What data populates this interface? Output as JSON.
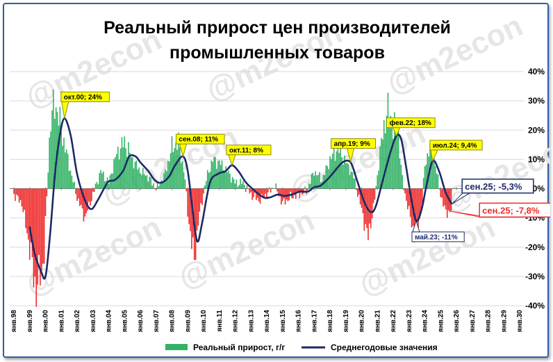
{
  "chart_data": {
    "type": "bar",
    "title_lines": [
      "Реальный прирост цен производителей",
      "промышленных товаров"
    ],
    "watermark": "@m2econ",
    "ylim": [
      -40,
      40
    ],
    "yticks": [
      40,
      30,
      20,
      10,
      0,
      -10,
      -20,
      -30,
      -40
    ],
    "ytick_labels": [
      "40%",
      "30%",
      "20%",
      "10%",
      "0%",
      "-10%",
      "-20%",
      "-30%",
      "-40%"
    ],
    "x_labels": [
      "янв.98",
      "янв.99",
      "янв.00",
      "янв.01",
      "янв.02",
      "янв.03",
      "янв.04",
      "янв.05",
      "янв.06",
      "янв.07",
      "янв.08",
      "янв.09",
      "янв.10",
      "янв.11",
      "янв.12",
      "янв.13",
      "янв.14",
      "янв.15",
      "янв.16",
      "янв.17",
      "янв.18",
      "янв.19",
      "янв.20",
      "янв.21",
      "янв.22",
      "янв.23",
      "янв.24",
      "янв.25",
      "янв.26",
      "янв.27",
      "янв.28",
      "янв.29",
      "янв.30"
    ],
    "x_start_year": 1998,
    "colors": {
      "positive": "#33b266",
      "negative": "#ee2b2b",
      "line": "#1b2a66",
      "callout_fill": "#ffff00"
    },
    "series": [
      {
        "name": "Реальный прирост, г/г",
        "kind": "bar",
        "points": [
          [
            1998.0,
            -2
          ],
          [
            1998.5,
            -5
          ],
          [
            1999.0,
            -20
          ],
          [
            1999.4,
            -35
          ],
          [
            1999.9,
            -24
          ],
          [
            2000.3,
            22
          ],
          [
            2000.6,
            30
          ],
          [
            2001.0,
            20
          ],
          [
            2001.5,
            8
          ],
          [
            2002.0,
            -3
          ],
          [
            2002.5,
            -10
          ],
          [
            2003.0,
            -2
          ],
          [
            2003.5,
            6
          ],
          [
            2004.0,
            2
          ],
          [
            2004.5,
            12
          ],
          [
            2005.0,
            16
          ],
          [
            2005.5,
            10
          ],
          [
            2006.0,
            6
          ],
          [
            2006.5,
            4
          ],
          [
            2007.0,
            0
          ],
          [
            2007.5,
            4
          ],
          [
            2008.0,
            14
          ],
          [
            2008.4,
            16
          ],
          [
            2008.8,
            5
          ],
          [
            2009.0,
            -8
          ],
          [
            2009.4,
            -25
          ],
          [
            2009.7,
            -10
          ],
          [
            2010.2,
            4
          ],
          [
            2010.6,
            10
          ],
          [
            2011.0,
            9
          ],
          [
            2011.5,
            6
          ],
          [
            2012.0,
            2
          ],
          [
            2012.5,
            2
          ],
          [
            2013.0,
            -2
          ],
          [
            2013.5,
            -4
          ],
          [
            2014.0,
            -2
          ],
          [
            2014.5,
            1
          ],
          [
            2015.0,
            -5
          ],
          [
            2015.5,
            -3
          ],
          [
            2016.0,
            -2
          ],
          [
            2016.5,
            -1
          ],
          [
            2017.0,
            6
          ],
          [
            2017.5,
            3
          ],
          [
            2018.0,
            10
          ],
          [
            2018.5,
            14
          ],
          [
            2019.0,
            9
          ],
          [
            2019.5,
            4
          ],
          [
            2020.0,
            -7
          ],
          [
            2020.4,
            -17
          ],
          [
            2020.8,
            -5
          ],
          [
            2021.2,
            14
          ],
          [
            2021.6,
            27
          ],
          [
            2022.0,
            22
          ],
          [
            2022.3,
            20
          ],
          [
            2022.6,
            2
          ],
          [
            2023.0,
            -8
          ],
          [
            2023.4,
            -17
          ],
          [
            2023.8,
            -7
          ],
          [
            2024.0,
            8
          ],
          [
            2024.3,
            14
          ],
          [
            2024.6,
            10
          ],
          [
            2025.0,
            -2
          ],
          [
            2025.3,
            -8
          ],
          [
            2025.7,
            -7.8
          ]
        ]
      },
      {
        "name": "Среднегодовые значения",
        "kind": "line",
        "points": [
          [
            1999.0,
            -13
          ],
          [
            1999.3,
            -22
          ],
          [
            1999.7,
            -28
          ],
          [
            2000.0,
            -30
          ],
          [
            2000.3,
            -15
          ],
          [
            2000.6,
            5
          ],
          [
            2000.9,
            18
          ],
          [
            2001.2,
            24
          ],
          [
            2001.6,
            18
          ],
          [
            2002.0,
            5
          ],
          [
            2002.5,
            -4
          ],
          [
            2002.9,
            -7
          ],
          [
            2003.3,
            -4
          ],
          [
            2003.7,
            0
          ],
          [
            2004.0,
            2.5
          ],
          [
            2004.4,
            3
          ],
          [
            2004.9,
            6
          ],
          [
            2005.3,
            11
          ],
          [
            2005.7,
            11
          ],
          [
            2006.0,
            9
          ],
          [
            2006.5,
            6
          ],
          [
            2006.9,
            3
          ],
          [
            2007.3,
            2
          ],
          [
            2007.8,
            4
          ],
          [
            2008.2,
            8
          ],
          [
            2008.7,
            11
          ],
          [
            2009.0,
            6
          ],
          [
            2009.3,
            -7
          ],
          [
            2009.6,
            -18
          ],
          [
            2009.9,
            -12
          ],
          [
            2010.4,
            2
          ],
          [
            2010.9,
            5
          ],
          [
            2011.4,
            6
          ],
          [
            2011.8,
            8
          ],
          [
            2012.2,
            6
          ],
          [
            2012.7,
            2
          ],
          [
            2013.3,
            -1
          ],
          [
            2013.8,
            -3
          ],
          [
            2014.2,
            -3
          ],
          [
            2014.7,
            -2
          ],
          [
            2015.1,
            -2.5
          ],
          [
            2015.6,
            -2
          ],
          [
            2016.1,
            -1
          ],
          [
            2016.6,
            -1
          ],
          [
            2017.0,
            0.5
          ],
          [
            2017.4,
            1
          ],
          [
            2017.9,
            3.5
          ],
          [
            2018.3,
            6
          ],
          [
            2018.8,
            9
          ],
          [
            2019.3,
            9
          ],
          [
            2019.7,
            3
          ],
          [
            2020.2,
            -5
          ],
          [
            2020.6,
            -8
          ],
          [
            2020.9,
            -6
          ],
          [
            2021.3,
            2
          ],
          [
            2021.8,
            12
          ],
          [
            2022.2,
            18
          ],
          [
            2022.5,
            17
          ],
          [
            2022.8,
            8
          ],
          [
            2023.1,
            -2
          ],
          [
            2023.45,
            -11
          ],
          [
            2023.8,
            -7
          ],
          [
            2024.1,
            1
          ],
          [
            2024.5,
            9.4
          ],
          [
            2024.9,
            6
          ],
          [
            2025.3,
            -1
          ],
          [
            2025.7,
            -5.3
          ]
        ]
      }
    ],
    "annotations": [
      {
        "id": "okt00",
        "label": "окт.00; 24%",
        "x": 2001.2,
        "y": 24,
        "style": "yellow"
      },
      {
        "id": "sen08",
        "label": "сен.08; 11%",
        "x": 2008.7,
        "y": 11,
        "style": "yellow"
      },
      {
        "id": "okt11",
        "label": "окт.11; 8%",
        "x": 2011.8,
        "y": 8,
        "style": "yellow"
      },
      {
        "id": "apr19",
        "label": "апр.19; 9%",
        "x": 2019.3,
        "y": 9,
        "style": "yellow"
      },
      {
        "id": "fev22",
        "label": "фев.22; 18%",
        "x": 2022.2,
        "y": 18,
        "style": "yellow"
      },
      {
        "id": "iul24",
        "label": "июл.24; 9,4%",
        "x": 2024.5,
        "y": 9.4,
        "style": "yellow"
      },
      {
        "id": "mai23",
        "label": "май.23; -11%",
        "x": 2023.45,
        "y": -11,
        "style": "navy"
      },
      {
        "id": "sen25line",
        "label": "сен.25; -5,3%",
        "x": 2025.7,
        "y": -5.3,
        "style": "navy-large"
      },
      {
        "id": "sen25bar",
        "label": "сен.25; -7,8%",
        "x": 2025.7,
        "y": -7.8,
        "style": "red-large"
      }
    ],
    "legend": {
      "position": "bottom",
      "items": [
        {
          "name": "Реальный прирост, г/г",
          "swatch": "#33b266"
        },
        {
          "name": "Среднегодовые значения",
          "swatch": "#1b2a66"
        }
      ]
    }
  }
}
